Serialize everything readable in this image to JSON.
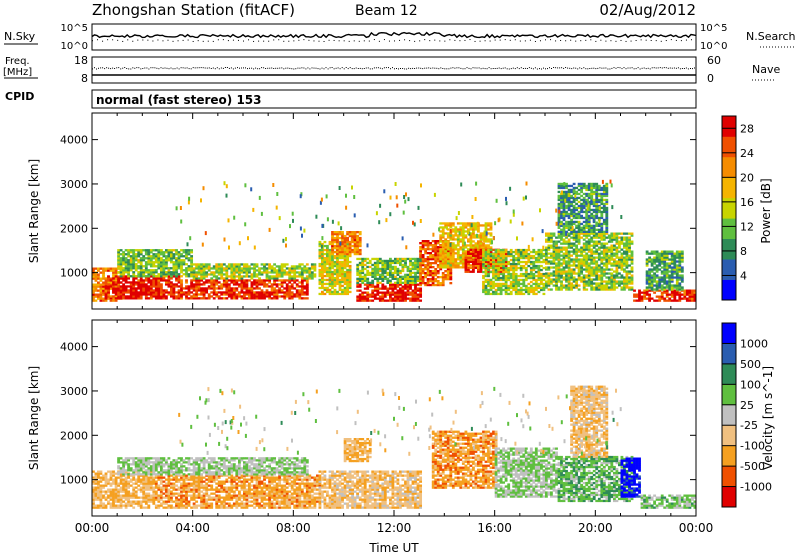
{
  "header": {
    "station": "Zhongshan Station (fitACF)",
    "beam": "Beam 12",
    "date": "02/Aug/2012"
  },
  "nsky_panel": {
    "left_label": "N.Sky",
    "right_label": "N.Search",
    "left_ticks": [
      "10^5",
      "10^0"
    ],
    "right_ticks": [
      "10^5",
      "10^0"
    ]
  },
  "freq_panel": {
    "left_label_1": "Freq.",
    "left_label_2": "[MHz]",
    "left_ticks": [
      "18",
      "8"
    ],
    "right_ticks": [
      "60",
      "0"
    ],
    "right_label": "Nave"
  },
  "cpid_panel": {
    "label": "CPID",
    "mode": "normal (fast stereo) 153"
  },
  "chart_data": [
    {
      "type": "heatmap",
      "panel": "power",
      "ylabel": "Slant Range [km]",
      "xlabel": "",
      "x_range_hours": [
        0,
        24
      ],
      "ylim": [
        180,
        4600
      ],
      "yticks": [
        "1000",
        "2000",
        "3000",
        "4000"
      ],
      "colorbar": {
        "label": "Power [dB]",
        "ticks": [
          "4",
          "8",
          "12",
          "16",
          "20",
          "24",
          "28"
        ],
        "range": [
          0,
          30
        ],
        "colors": [
          "#0000ff",
          "#2a5db0",
          "#2e8b57",
          "#5fbf3f",
          "#c8d400",
          "#f5b400",
          "#f58c00",
          "#f05000",
          "#e00000"
        ]
      },
      "blobs": [
        {
          "t0": 0.0,
          "t1": 1.2,
          "r0": 350,
          "r1": 1100,
          "v": 22
        },
        {
          "t0": 0.5,
          "t1": 3.5,
          "r0": 400,
          "r1": 900,
          "v": 28
        },
        {
          "t0": 1.0,
          "t1": 4.0,
          "r0": 900,
          "r1": 1500,
          "v": 12
        },
        {
          "t0": 3.5,
          "t1": 8.5,
          "r0": 400,
          "r1": 850,
          "v": 27
        },
        {
          "t0": 4.0,
          "t1": 8.8,
          "r0": 850,
          "r1": 1200,
          "v": 14
        },
        {
          "t0": 9.0,
          "t1": 10.2,
          "r0": 500,
          "r1": 1700,
          "v": 16
        },
        {
          "t0": 9.5,
          "t1": 10.6,
          "r0": 1400,
          "r1": 1900,
          "v": 22
        },
        {
          "t0": 10.5,
          "t1": 13.0,
          "r0": 350,
          "r1": 750,
          "v": 28
        },
        {
          "t0": 10.5,
          "t1": 13.0,
          "r0": 750,
          "r1": 1300,
          "v": 12
        },
        {
          "t0": 13.0,
          "t1": 14.2,
          "r0": 700,
          "r1": 1700,
          "v": 24
        },
        {
          "t0": 13.8,
          "t1": 15.8,
          "r0": 1100,
          "r1": 2100,
          "v": 18
        },
        {
          "t0": 14.8,
          "t1": 16.5,
          "r0": 1000,
          "r1": 1500,
          "v": 28
        },
        {
          "t0": 15.5,
          "t1": 18.0,
          "r0": 500,
          "r1": 1500,
          "v": 14
        },
        {
          "t0": 18.0,
          "t1": 21.5,
          "r0": 600,
          "r1": 1900,
          "v": 13
        },
        {
          "t0": 18.5,
          "t1": 20.5,
          "r0": 1900,
          "r1": 3000,
          "v": 9
        },
        {
          "t0": 21.5,
          "t1": 24.0,
          "r0": 350,
          "r1": 600,
          "v": 27
        },
        {
          "t0": 22.0,
          "t1": 23.5,
          "r0": 600,
          "r1": 1500,
          "v": 10
        }
      ]
    },
    {
      "type": "heatmap",
      "panel": "velocity",
      "ylabel": "Slant Range [km]",
      "xlabel": "Time UT",
      "x_range_hours": [
        0,
        24
      ],
      "xticks": [
        "00:00",
        "04:00",
        "08:00",
        "12:00",
        "16:00",
        "20:00",
        "00:00"
      ],
      "ylim": [
        180,
        4600
      ],
      "yticks": [
        "1000",
        "2000",
        "3000",
        "4000"
      ],
      "colorbar": {
        "label": "Velocity [m s^-1]",
        "ticks": [
          "1000",
          "500",
          "100",
          "25",
          "-25",
          "-100",
          "-500",
          "-1000"
        ],
        "range": [
          -1200,
          1200
        ],
        "colors": [
          "#e00000",
          "#f05000",
          "#f5a020",
          "#f0c080",
          "#c0c0c0",
          "#5fbf3f",
          "#2e8b57",
          "#2a5db0",
          "#0000ff"
        ]
      },
      "blobs": [
        {
          "t0": 0.0,
          "t1": 2.5,
          "r0": 350,
          "r1": 1200,
          "v": -400
        },
        {
          "t0": 2.5,
          "t1": 9.0,
          "r0": 350,
          "r1": 1100,
          "v": -500
        },
        {
          "t0": 1.0,
          "t1": 8.5,
          "r0": 1100,
          "r1": 1500,
          "v": 120
        },
        {
          "t0": 9.0,
          "t1": 13.0,
          "r0": 350,
          "r1": 1200,
          "v": -300
        },
        {
          "t0": 10.0,
          "t1": 11.0,
          "r0": 1400,
          "r1": 1900,
          "v": -400
        },
        {
          "t0": 13.5,
          "t1": 16.0,
          "r0": 800,
          "r1": 2100,
          "v": -550
        },
        {
          "t0": 16.0,
          "t1": 18.5,
          "r0": 600,
          "r1": 1700,
          "v": 130
        },
        {
          "t0": 18.5,
          "t1": 21.5,
          "r0": 500,
          "r1": 1500,
          "v": 300
        },
        {
          "t0": 19.0,
          "t1": 20.5,
          "r0": 1500,
          "r1": 3100,
          "v": -300
        },
        {
          "t0": 21.0,
          "t1": 21.8,
          "r0": 600,
          "r1": 1500,
          "v": 1100
        },
        {
          "t0": 21.8,
          "t1": 24.0,
          "r0": 350,
          "r1": 650,
          "v": 200
        }
      ]
    }
  ]
}
